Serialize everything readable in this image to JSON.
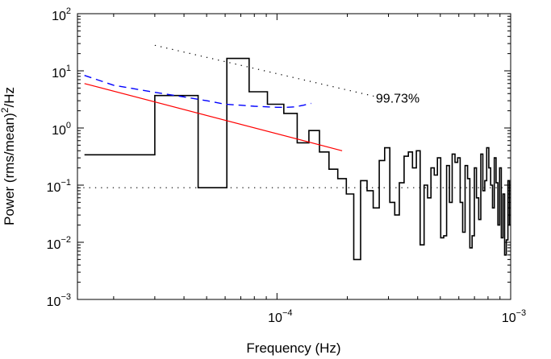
{
  "chart_data": {
    "type": "line",
    "xlabel": "Frequency (Hz)",
    "ylabel_main": "Power (rms/mean)",
    "ylabel_sup": "2",
    "ylabel_tail": "/Hz",
    "xscale": "log",
    "yscale": "log",
    "xlim": [
      1.4e-05,
      0.001
    ],
    "ylim": [
      0.001,
      100.0
    ],
    "grid": false,
    "legend": "none",
    "x_ticks": [
      {
        "value": 0.0001,
        "base": "10",
        "exp": "−4"
      },
      {
        "value": 0.001,
        "base": "10",
        "exp": "−3"
      }
    ],
    "y_ticks": [
      {
        "value": 0.001,
        "base": "10",
        "exp": "−3"
      },
      {
        "value": 0.01,
        "base": "10",
        "exp": "−2"
      },
      {
        "value": 0.1,
        "base": "10",
        "exp": "−1"
      },
      {
        "value": 1,
        "base": "10",
        "exp": "0"
      },
      {
        "value": 10,
        "base": "10",
        "exp": "1"
      },
      {
        "value": 100,
        "base": "10",
        "exp": "2"
      }
    ],
    "annotations": [
      {
        "text": "99.73%",
        "x": 0.000265,
        "y": 3.4
      }
    ],
    "series": [
      {
        "style": "step-black",
        "color": "#000000",
        "x": [
          1.5e-05,
          3e-05,
          4.6e-05,
          6.1e-05,
          7.6e-05,
          9.1e-05,
          0.000107,
          0.000122,
          0.000137,
          0.000152,
          0.000167,
          0.000182,
          0.000198,
          0.000213,
          0.000228,
          0.000243,
          0.000258,
          0.000274,
          0.000289,
          0.000304,
          0.000319,
          0.000334,
          0.00035,
          0.000365,
          0.00038,
          0.000395,
          0.00041,
          0.000426,
          0.000441,
          0.000456,
          0.000471,
          0.000486,
          0.000502,
          0.000517,
          0.000532,
          0.000547,
          0.000562,
          0.000578,
          0.000593,
          0.000608,
          0.000623,
          0.000638,
          0.000654,
          0.000669,
          0.000684,
          0.000699,
          0.000714,
          0.00073,
          0.000745,
          0.00076,
          0.000775,
          0.00079,
          0.000806,
          0.000821,
          0.000836,
          0.000851,
          0.000866,
          0.000882,
          0.000897,
          0.000912,
          0.000927,
          0.000942,
          0.000958,
          0.000973,
          0.000988
        ],
        "y": [
          0.34,
          3.7,
          0.09,
          16.5,
          4.3,
          2.6,
          1.8,
          0.55,
          0.9,
          0.38,
          0.19,
          0.13,
          0.07,
          0.005,
          0.12,
          0.08,
          0.04,
          0.27,
          0.45,
          0.05,
          0.03,
          0.11,
          0.32,
          0.38,
          0.2,
          0.4,
          0.009,
          0.1,
          0.06,
          0.2,
          0.15,
          0.3,
          0.012,
          0.013,
          0.22,
          0.05,
          0.35,
          0.25,
          0.3,
          0.05,
          0.015,
          0.22,
          0.13,
          0.008,
          0.013,
          0.2,
          0.06,
          0.025,
          0.35,
          0.08,
          0.12,
          0.45,
          0.2,
          0.1,
          0.04,
          0.3,
          0.11,
          0.02,
          0.2,
          0.012,
          0.07,
          0.006,
          0.011,
          0.12,
          0.02
        ]
      },
      {
        "style": "red-solid-fit",
        "color": "#ff0000",
        "x": [
          1.5e-05,
          0.00019
        ],
        "y": [
          6.0,
          0.4
        ]
      },
      {
        "style": "blue-dashed",
        "color": "#0000ff",
        "x": [
          1.5e-05,
          2e-05,
          3e-05,
          4e-05,
          5e-05,
          6e-05,
          7e-05,
          8e-05,
          9e-05,
          0.0001,
          0.00011,
          0.00012,
          0.00013,
          0.00014
        ],
        "y": [
          8.3,
          5.6,
          4.2,
          3.5,
          3.0,
          2.6,
          2.5,
          2.4,
          2.35,
          2.3,
          2.3,
          2.35,
          2.5,
          2.7
        ]
      },
      {
        "style": "black-dotted-upper",
        "color": "#000000",
        "x": [
          3e-05,
          0.00026
        ],
        "y": [
          28,
          3.6
        ]
      },
      {
        "style": "black-dotted-flat",
        "color": "#000000",
        "x": [
          1.4e-05,
          0.001
        ],
        "y": [
          0.09,
          0.09
        ]
      }
    ]
  }
}
